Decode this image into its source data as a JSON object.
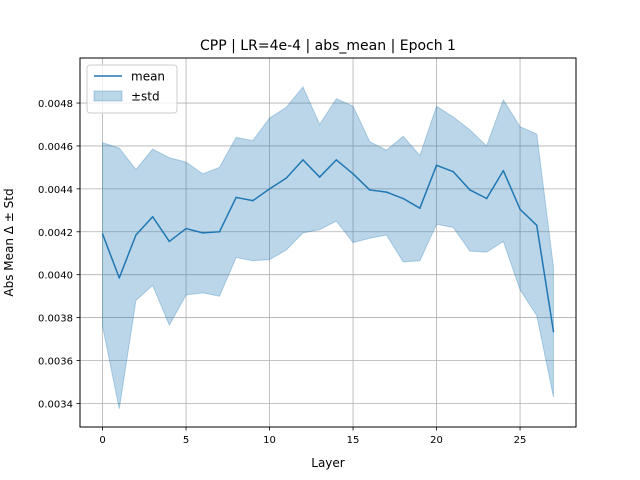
{
  "chart_data": {
    "type": "line",
    "title": "CPP | LR=4e-4 | abs_mean | Epoch 1",
    "xlabel": "Layer",
    "ylabel": "Abs Mean Δ ± Std",
    "xlim": [
      -1.35,
      28.35
    ],
    "ylim": [
      0.00329,
      0.00501
    ],
    "xticks": [
      0,
      5,
      10,
      15,
      20,
      25
    ],
    "xtick_labels": [
      "0",
      "5",
      "10",
      "15",
      "20",
      "25"
    ],
    "yticks": [
      0.0034,
      0.0036,
      0.0038,
      0.004,
      0.0042,
      0.0044,
      0.0046,
      0.0048
    ],
    "ytick_labels": [
      "0.0034",
      "0.0036",
      "0.0038",
      "0.0040",
      "0.0042",
      "0.0044",
      "0.0046",
      "0.0048"
    ],
    "grid": true,
    "legend_position": "top-left",
    "x": [
      0,
      1,
      2,
      3,
      4,
      5,
      6,
      7,
      8,
      9,
      10,
      11,
      12,
      13,
      14,
      15,
      16,
      17,
      18,
      19,
      20,
      21,
      22,
      23,
      24,
      25,
      26,
      27
    ],
    "series": [
      {
        "name": "mean",
        "color": "#1f77b4",
        "values": [
          0.00419,
          0.003985,
          0.004185,
          0.00427,
          0.004155,
          0.004215,
          0.004195,
          0.0042,
          0.00436,
          0.004345,
          0.0044,
          0.00445,
          0.004535,
          0.004455,
          0.004535,
          0.00447,
          0.004395,
          0.004385,
          0.004355,
          0.00431,
          0.00451,
          0.00448,
          0.004395,
          0.004355,
          0.004485,
          0.004305,
          0.00423,
          0.003735
        ]
      },
      {
        "name": "±std",
        "color": "#1f77b4",
        "band_upper": [
          0.004615,
          0.00459,
          0.00449,
          0.004585,
          0.004545,
          0.004525,
          0.00447,
          0.0045,
          0.00464,
          0.004625,
          0.00473,
          0.00478,
          0.004875,
          0.0047,
          0.00482,
          0.004785,
          0.00462,
          0.00458,
          0.004645,
          0.004555,
          0.004785,
          0.004735,
          0.004675,
          0.0046,
          0.004815,
          0.00469,
          0.004655,
          0.004035
        ],
        "band_lower": [
          0.00376,
          0.003375,
          0.00388,
          0.00395,
          0.003765,
          0.003905,
          0.003915,
          0.0039,
          0.00408,
          0.004065,
          0.00407,
          0.004115,
          0.004195,
          0.00421,
          0.00425,
          0.00415,
          0.00417,
          0.004185,
          0.00406,
          0.004065,
          0.004235,
          0.00422,
          0.00411,
          0.004105,
          0.004155,
          0.00393,
          0.00381,
          0.00343
        ]
      }
    ]
  }
}
